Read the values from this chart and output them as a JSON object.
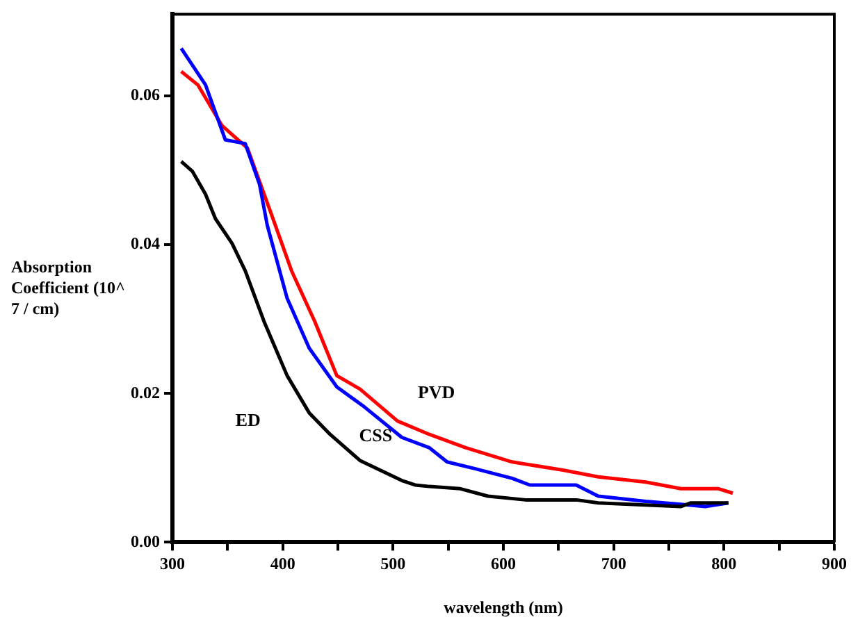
{
  "chart_data": {
    "type": "line",
    "xlabel": "wavelength (nm)",
    "ylabel": "Absorption Coefficient (10^ 7  / cm)",
    "xlim": [
      300,
      900
    ],
    "ylim": [
      0,
      0.071
    ],
    "xticks": [
      300,
      {
        "value": 350,
        "label": null
      },
      400,
      {
        "value": 450,
        "label": null
      },
      500,
      {
        "value": 550,
        "label": null
      },
      600,
      {
        "value": 650,
        "label": null
      },
      700,
      {
        "value": 750,
        "label": null
      },
      800,
      {
        "value": 850,
        "label": null
      },
      900
    ],
    "yticks": [
      {
        "value": 0,
        "label": "0.00"
      },
      {
        "value": 0.02,
        "label": "0.02"
      },
      {
        "value": 0.04,
        "label": "0.04"
      },
      {
        "value": 0.06,
        "label": "0.06"
      }
    ],
    "grid": false,
    "legend": false,
    "marker": "none",
    "line_style": "solid",
    "series": [
      {
        "name": "ED",
        "color": "#000000",
        "x": [
          308,
          318,
          330,
          339,
          354,
          366,
          383,
          404,
          424,
          443,
          470,
          508,
          520,
          533,
          561,
          586,
          620,
          666,
          686,
          761,
          770,
          804
        ],
        "values": [
          0.0512,
          0.0499,
          0.0468,
          0.0435,
          0.0402,
          0.0365,
          0.0297,
          0.0224,
          0.0174,
          0.0145,
          0.011,
          0.0083,
          0.0077,
          0.0075,
          0.0072,
          0.0062,
          0.0057,
          0.0057,
          0.0053,
          0.0048,
          0.0053,
          0.0053
        ]
      },
      {
        "name": "CSS",
        "color": "#0000ff",
        "x": [
          308,
          330,
          348,
          366,
          379,
          386,
          404,
          424,
          449,
          474,
          508,
          533,
          549,
          574,
          608,
          624,
          666,
          686,
          729,
          761,
          783,
          804
        ],
        "values": [
          0.0664,
          0.0615,
          0.0541,
          0.0536,
          0.0481,
          0.0426,
          0.0328,
          0.0261,
          0.0209,
          0.0182,
          0.0141,
          0.0127,
          0.0108,
          0.0099,
          0.0086,
          0.0077,
          0.0077,
          0.0062,
          0.0055,
          0.0051,
          0.0048,
          0.0053
        ]
      },
      {
        "name": "PVD",
        "color": "#ff0000",
        "x": [
          308,
          323,
          345,
          368,
          389,
          408,
          429,
          449,
          470,
          504,
          533,
          566,
          608,
          654,
          686,
          729,
          761,
          795,
          808
        ],
        "values": [
          0.0633,
          0.0615,
          0.056,
          0.053,
          0.0444,
          0.0365,
          0.0297,
          0.0224,
          0.0206,
          0.0163,
          0.0145,
          0.0127,
          0.0108,
          0.0097,
          0.0088,
          0.0081,
          0.0072,
          0.0072,
          0.0066
        ]
      }
    ]
  }
}
